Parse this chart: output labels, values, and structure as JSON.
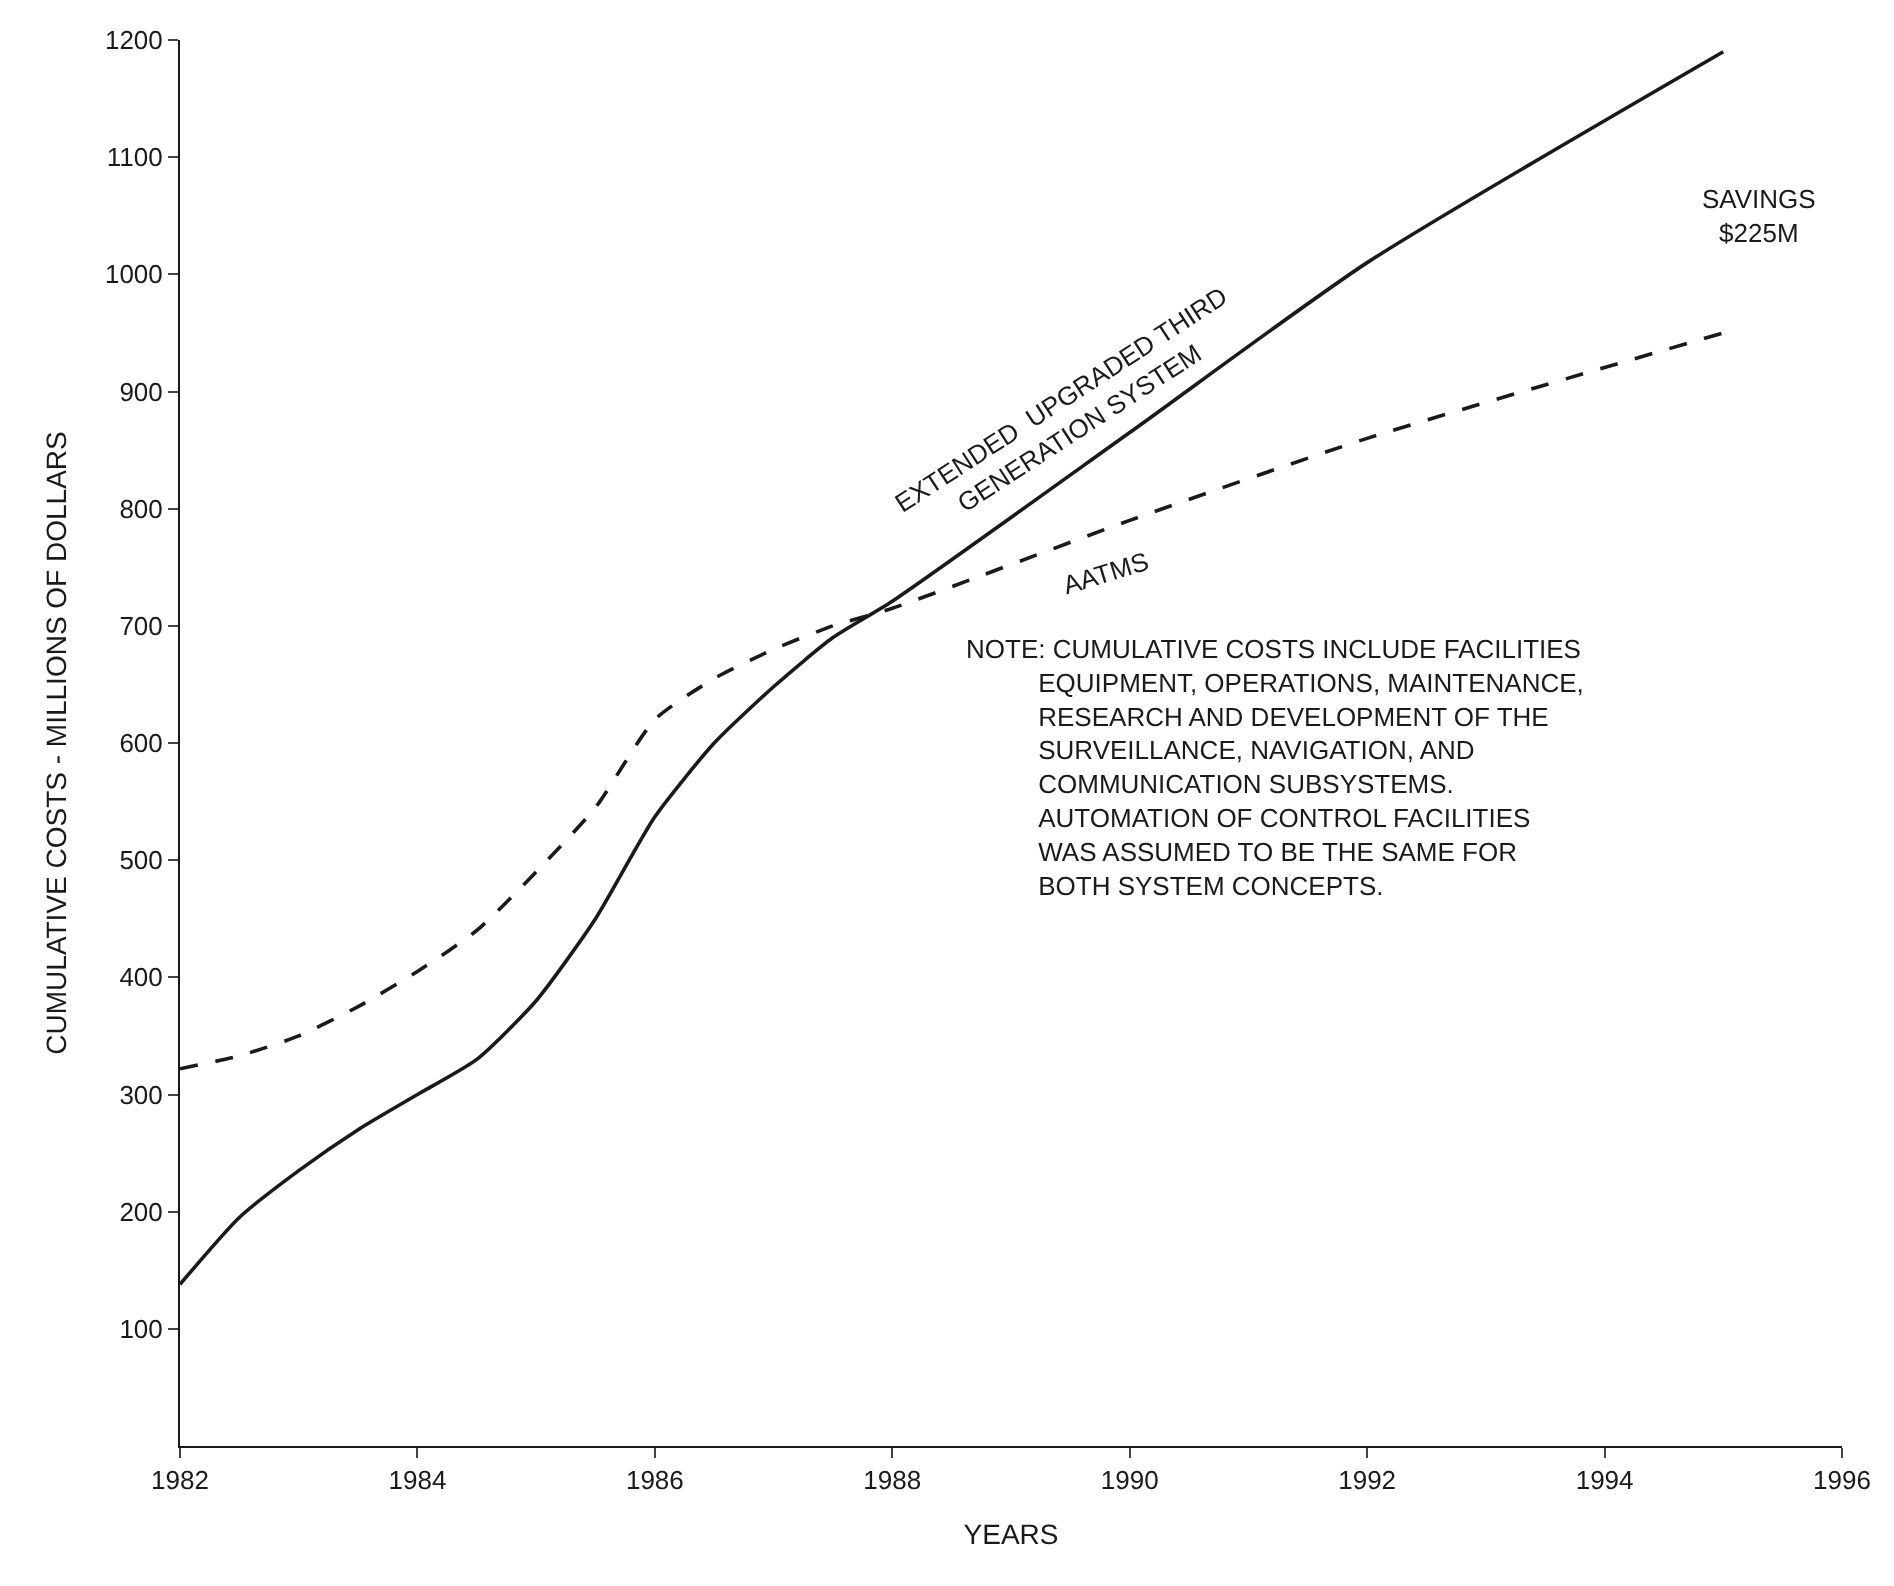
{
  "chart_data": {
    "type": "line",
    "xlabel": "YEARS",
    "ylabel": "CUMULATIVE COSTS - MILLIONS OF DOLLARS",
    "xlim": [
      1982,
      1996
    ],
    "xticks": [
      1982,
      1984,
      1986,
      1988,
      1990,
      1992,
      1994,
      1996
    ],
    "ylim": [
      0,
      1200
    ],
    "yticks": [
      100,
      200,
      300,
      400,
      500,
      600,
      700,
      800,
      900,
      1000,
      1100,
      1200
    ],
    "legend": false,
    "marker": "none",
    "series": [
      {
        "name": "EXTENDED  UPGRADED THIRD\nGENERATION SYSTEM",
        "color": "#1a1a1a",
        "line_style": "solid",
        "x": [
          1982,
          1982.5,
          1983,
          1983.5,
          1984,
          1984.5,
          1985,
          1985.5,
          1986,
          1986.5,
          1987,
          1987.5,
          1988,
          1990,
          1992,
          1995
        ],
        "values": [
          138,
          195,
          235,
          270,
          300,
          330,
          380,
          450,
          537,
          600,
          648,
          690,
          721,
          865,
          1010,
          1190
        ]
      },
      {
        "name": "AATMS",
        "color": "#1a1a1a",
        "line_style": "dashed",
        "x": [
          1982,
          1982.5,
          1983,
          1983.5,
          1984,
          1984.5,
          1985,
          1985.5,
          1986,
          1986.5,
          1987,
          1987.5,
          1988,
          1990,
          1992,
          1995
        ],
        "values": [
          322,
          333,
          350,
          375,
          405,
          440,
          490,
          545,
          620,
          655,
          680,
          700,
          715,
          790,
          860,
          950
        ]
      }
    ],
    "annotations": [
      "SAVINGS\n$225M",
      "NOTE: CUMULATIVE COSTS INCLUDE FACILITIES\n          EQUIPMENT, OPERATIONS, MAINTENANCE,\n          RESEARCH AND DEVELOPMENT OF THE\n          SURVEILLANCE, NAVIGATION, AND\n          COMMUNICATION SUBSYSTEMS.\n          AUTOMATION OF CONTROL FACILITIES\n          WAS ASSUMED TO BE THE SAME FOR\n          BOTH SYSTEM CONCEPTS."
    ]
  }
}
